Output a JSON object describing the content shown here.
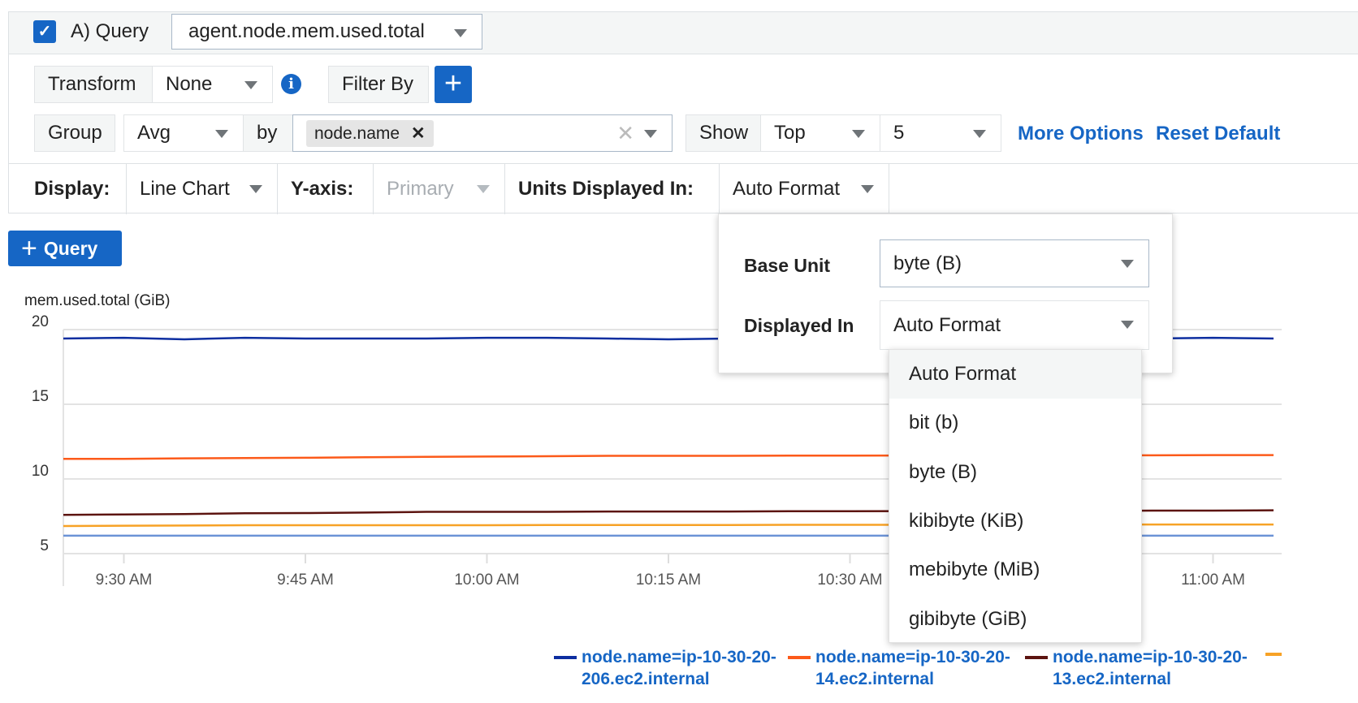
{
  "query": {
    "checked": true,
    "label": "A) Query",
    "metric": "agent.node.mem.used.total"
  },
  "transform": {
    "label": "Transform",
    "value": "None",
    "info_icon": "info-icon"
  },
  "filter": {
    "label": "Filter By",
    "add_icon": "plus-icon"
  },
  "group": {
    "label": "Group",
    "agg": "Avg",
    "by": "by",
    "tag": "node.name",
    "show_label": "Show",
    "show_value": "Top",
    "count": "5",
    "more_options": "More Options",
    "reset": "Reset Default"
  },
  "display": {
    "label": "Display:",
    "value": "Line Chart",
    "yaxis_label": "Y-axis:",
    "yaxis_value": "Primary",
    "units_label": "Units Displayed In:",
    "units_value": "Auto Format"
  },
  "add_query": "Query",
  "units_popup": {
    "base_unit_label": "Base Unit",
    "base_unit_value": "byte (B)",
    "displayed_in_label": "Displayed In",
    "displayed_in_value": "Auto Format",
    "options": [
      "Auto Format",
      "bit (b)",
      "byte (B)",
      "kibibyte (KiB)",
      "mebibyte (MiB)",
      "gibibyte (GiB)"
    ],
    "highlighted": "Auto Format"
  },
  "chart_data": {
    "type": "line",
    "ylabel": "mem.used.total (GiB)",
    "ylim": [
      5,
      20
    ],
    "yticks": [
      "20",
      "15",
      "10",
      "5"
    ],
    "xlim": [
      "9:25 AM",
      "11:05 AM"
    ],
    "xticks": [
      "9:30 AM",
      "9:45 AM",
      "10:00 AM",
      "10:15 AM",
      "10:30 AM",
      "11:00 AM"
    ],
    "grid": true,
    "legend": "bottom",
    "x": [
      "9:25",
      "9:30",
      "9:35",
      "9:40",
      "9:45",
      "9:50",
      "9:55",
      "10:00",
      "10:05",
      "10:10",
      "10:15",
      "10:20",
      "10:25",
      "10:30",
      "10:35",
      "10:40",
      "10:45",
      "10:50",
      "10:55",
      "11:00",
      "11:05"
    ],
    "series": [
      {
        "name": "node.name=ip-10-30-20-206.ec2.internal",
        "color": "#0d2ea0",
        "values": [
          19.4,
          19.45,
          19.35,
          19.45,
          19.4,
          19.4,
          19.4,
          19.45,
          19.45,
          19.4,
          19.35,
          19.4,
          19.45,
          19.4,
          19.4,
          19.4,
          19.4,
          19.45,
          19.4,
          19.45,
          19.4
        ]
      },
      {
        "name": "node.name=ip-10-30-20-14.ec2.internal",
        "color": "#fc5a1a",
        "values": [
          11.35,
          11.35,
          11.38,
          11.4,
          11.42,
          11.45,
          11.48,
          11.5,
          11.52,
          11.55,
          11.55,
          11.55,
          11.56,
          11.56,
          11.57,
          11.57,
          11.58,
          11.58,
          11.58,
          11.6,
          11.6
        ]
      },
      {
        "name": "node.name=ip-10-30-20-13.ec2.internal",
        "color": "#5c1410",
        "values": [
          7.6,
          7.62,
          7.65,
          7.7,
          7.72,
          7.75,
          7.8,
          7.8,
          7.8,
          7.82,
          7.82,
          7.82,
          7.84,
          7.84,
          7.85,
          7.85,
          7.86,
          7.86,
          7.88,
          7.88,
          7.9
        ]
      },
      {
        "color": "#f7a226",
        "values": [
          6.85,
          6.87,
          6.88,
          6.9,
          6.9,
          6.9,
          6.9,
          6.9,
          6.92,
          6.92,
          6.92,
          6.92,
          6.93,
          6.93,
          6.93,
          6.94,
          6.94,
          6.94,
          6.95,
          6.95,
          6.95
        ]
      },
      {
        "color": "#6b93d6",
        "values": [
          6.2,
          6.2,
          6.2,
          6.2,
          6.2,
          6.2,
          6.2,
          6.2,
          6.2,
          6.2,
          6.2,
          6.2,
          6.2,
          6.2,
          6.2,
          6.2,
          6.2,
          6.2,
          6.2,
          6.2,
          6.2
        ]
      }
    ]
  }
}
